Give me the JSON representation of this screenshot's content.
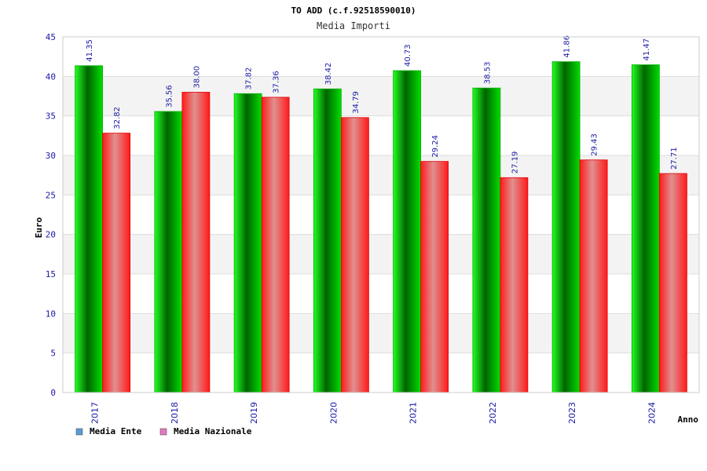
{
  "chart_data": {
    "type": "bar",
    "title": "TO ADD (c.f.92518590010)",
    "subtitle": "Media Importi",
    "xlabel": "Anno",
    "ylabel": "Euro",
    "ylim": [
      0,
      45
    ],
    "yticks": [
      "0",
      "5",
      "10",
      "15",
      "20",
      "25",
      "30",
      "35",
      "40",
      "45"
    ],
    "categories": [
      "2017",
      "2018",
      "2019",
      "2020",
      "2021",
      "2022",
      "2023",
      "2024"
    ],
    "series": [
      {
        "name": "Media Ente",
        "values": [
          41.35,
          35.56,
          37.82,
          38.42,
          40.73,
          38.53,
          41.86,
          41.47
        ],
        "labels": [
          "41.35",
          "35.56",
          "37.82",
          "38.42",
          "40.73",
          "38.53",
          "41.86",
          "41.47"
        ],
        "color": "#00c000",
        "legend_color": "#5b9bd5"
      },
      {
        "name": "Media Nazionale",
        "values": [
          32.82,
          38.0,
          37.36,
          34.79,
          29.24,
          27.19,
          29.43,
          27.71
        ],
        "labels": [
          "32.82",
          "38.00",
          "37.36",
          "34.79",
          "29.24",
          "27.19",
          "29.43",
          "27.71"
        ],
        "color": "#ff1010",
        "legend_color": "#e377c2"
      }
    ],
    "grid": "horizontal bands",
    "legend_position": "bottom-left"
  }
}
